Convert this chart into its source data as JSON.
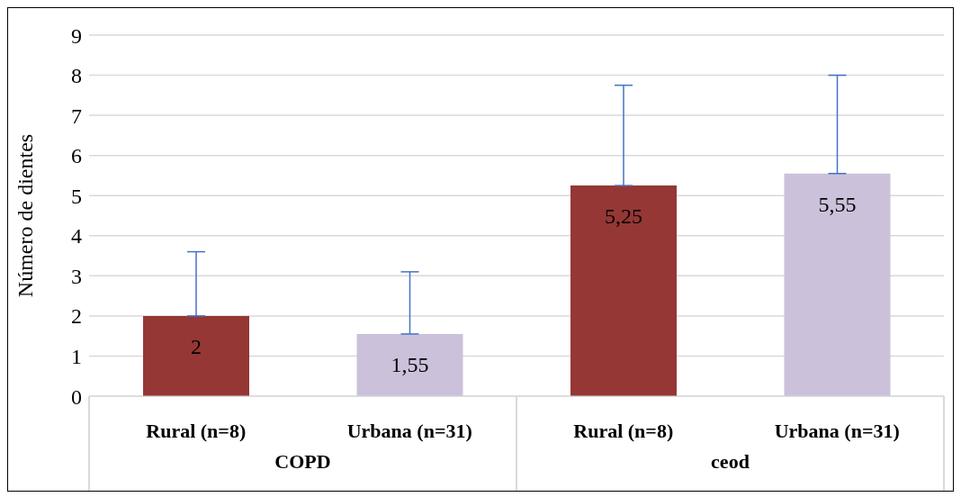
{
  "chart_data": {
    "type": "bar",
    "ylabel": "Número de dientes",
    "categories": [
      "Rural (n=8)",
      "Urbana (n=31)",
      "Rural (n=8)",
      "Urbana (n=31)"
    ],
    "values": [
      2,
      1.55,
      5.25,
      5.55
    ],
    "colors": [
      "#953735",
      "#ccc1da",
      "#953735",
      "#ccc1da"
    ],
    "value_labels": [
      "2",
      "1,55",
      "5,25",
      "5,55"
    ],
    "errors": [
      [
        2,
        3.6
      ],
      [
        1.55,
        3.1
      ],
      [
        5.25,
        7.75
      ],
      [
        5.55,
        8
      ]
    ],
    "annotations": [
      "COPD",
      "ceod"
    ],
    "ylim": [
      0,
      9
    ],
    "yticks": [
      0,
      1,
      2,
      3,
      4,
      5,
      6,
      7,
      8,
      9
    ],
    "grid": "y"
  }
}
